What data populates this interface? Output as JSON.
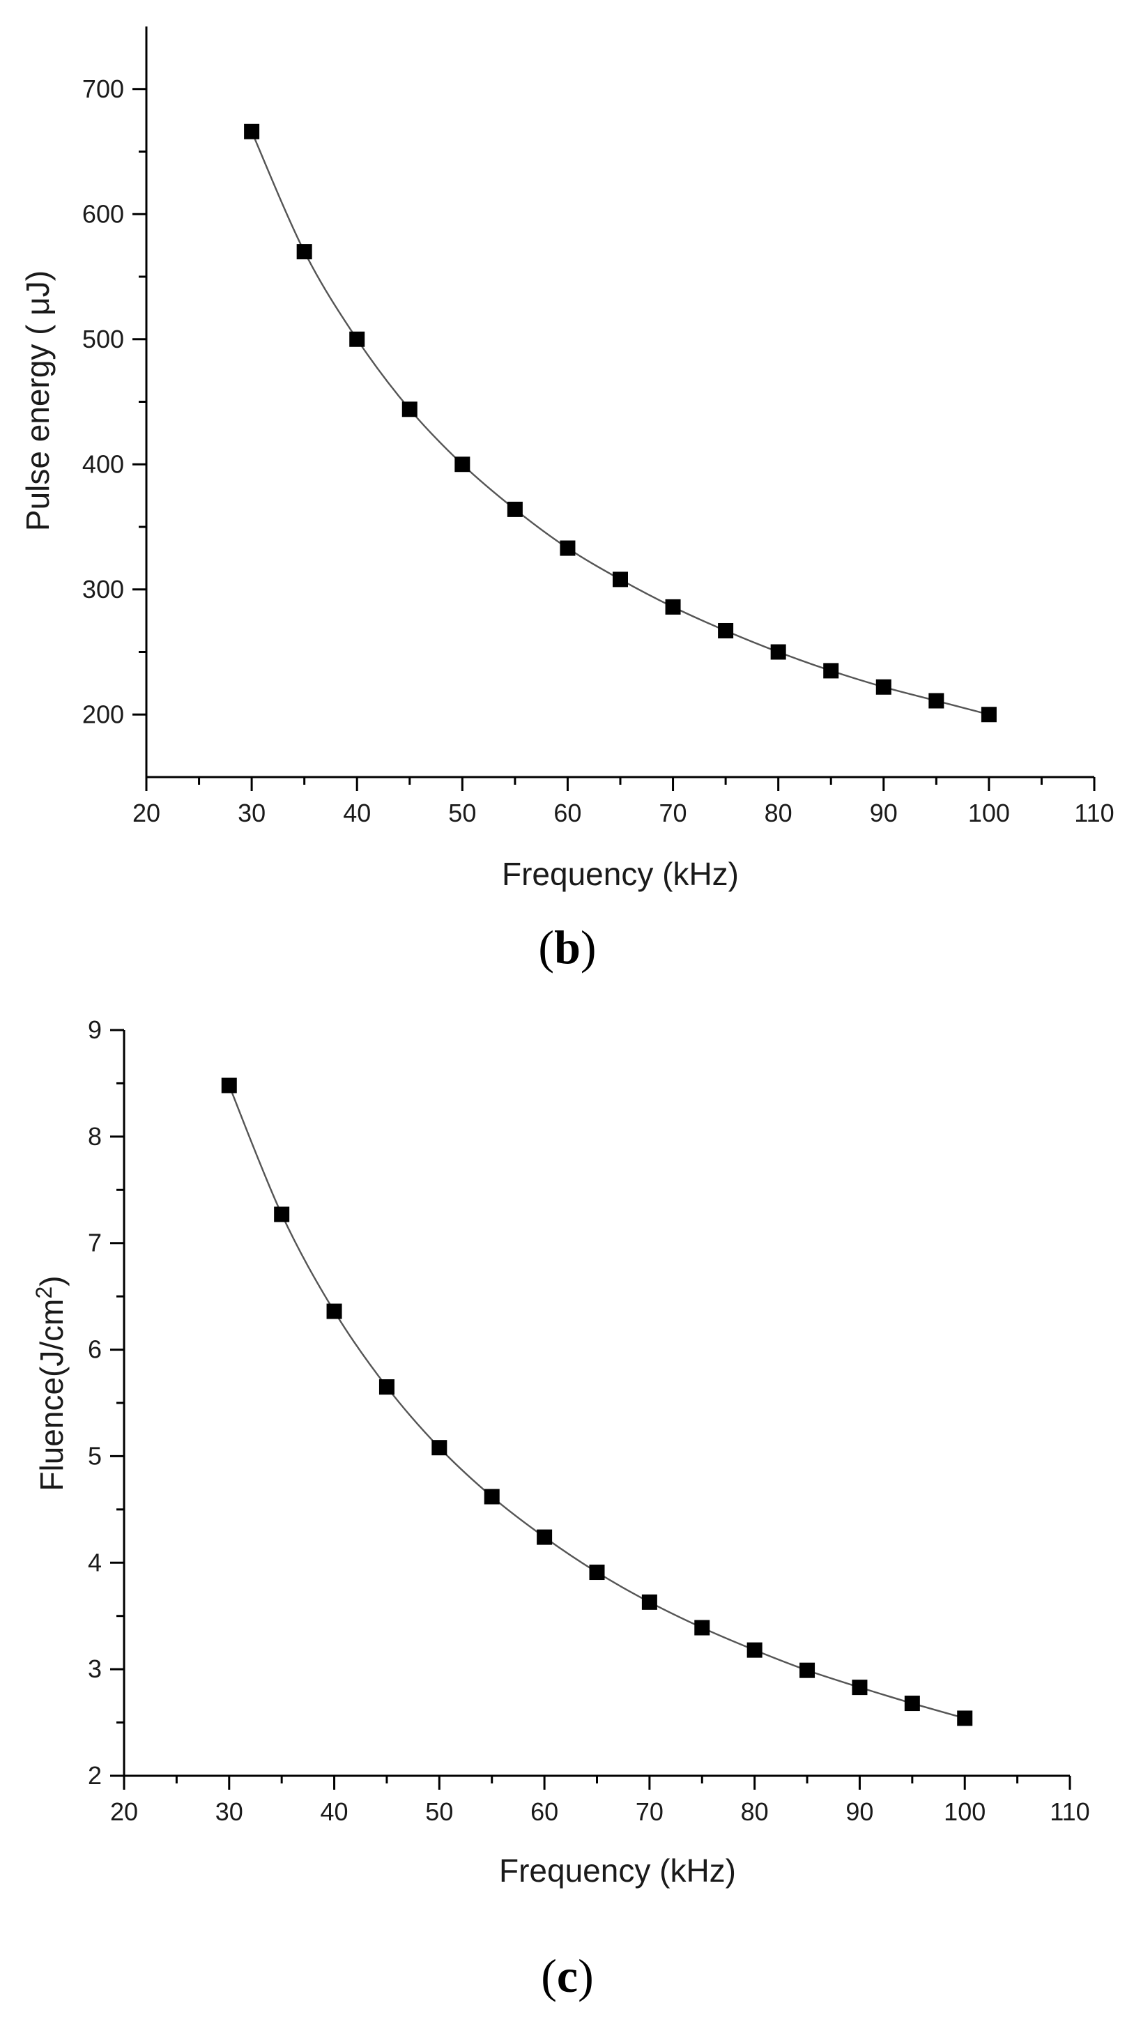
{
  "colors": {
    "marker": "#000000",
    "curve": "#555555",
    "axis": "#000000",
    "text": "#1a1a1a"
  },
  "chart_data": [
    {
      "type": "line",
      "panel": "b",
      "panel_label": {
        "open": "(",
        "letter": "b",
        "close": ")"
      },
      "title": "",
      "xlabel": "Frequency (kHz)",
      "ylabel": "Pulse energy ( μJ)",
      "xlim": [
        20,
        110
      ],
      "ylim": [
        150,
        750
      ],
      "xticks": [
        20,
        30,
        40,
        50,
        60,
        70,
        80,
        90,
        100,
        110
      ],
      "yticks": [
        200,
        300,
        400,
        500,
        600,
        700
      ],
      "grid": false,
      "legend": "none",
      "series": [
        {
          "name": "Pulse energy",
          "marker": "square",
          "x": [
            30,
            35,
            40,
            45,
            50,
            55,
            60,
            65,
            70,
            75,
            80,
            85,
            90,
            95,
            100
          ],
          "values": [
            666,
            570,
            500,
            444,
            400,
            364,
            333,
            308,
            286,
            267,
            250,
            235,
            222,
            211,
            200
          ]
        }
      ]
    },
    {
      "type": "line",
      "panel": "c",
      "panel_label": {
        "open": "(",
        "letter": "c",
        "close": ")"
      },
      "title": "",
      "xlabel": "Frequency (kHz)",
      "ylabel": "Fluence(J/cm",
      "ylabel_sup": "2",
      "ylabel_close": ")",
      "xlim": [
        20,
        110
      ],
      "ylim": [
        2,
        9
      ],
      "xticks": [
        20,
        30,
        40,
        50,
        60,
        70,
        80,
        90,
        100,
        110
      ],
      "yticks": [
        2,
        3,
        4,
        5,
        6,
        7,
        8,
        9
      ],
      "grid": false,
      "legend": "none",
      "series": [
        {
          "name": "Fluence",
          "marker": "square",
          "x": [
            30,
            35,
            40,
            45,
            50,
            55,
            60,
            65,
            70,
            75,
            80,
            85,
            90,
            95,
            100
          ],
          "values": [
            8.48,
            7.27,
            6.36,
            5.65,
            5.08,
            4.62,
            4.24,
            3.91,
            3.63,
            3.39,
            3.18,
            2.99,
            2.83,
            2.68,
            2.54
          ]
        }
      ]
    }
  ]
}
